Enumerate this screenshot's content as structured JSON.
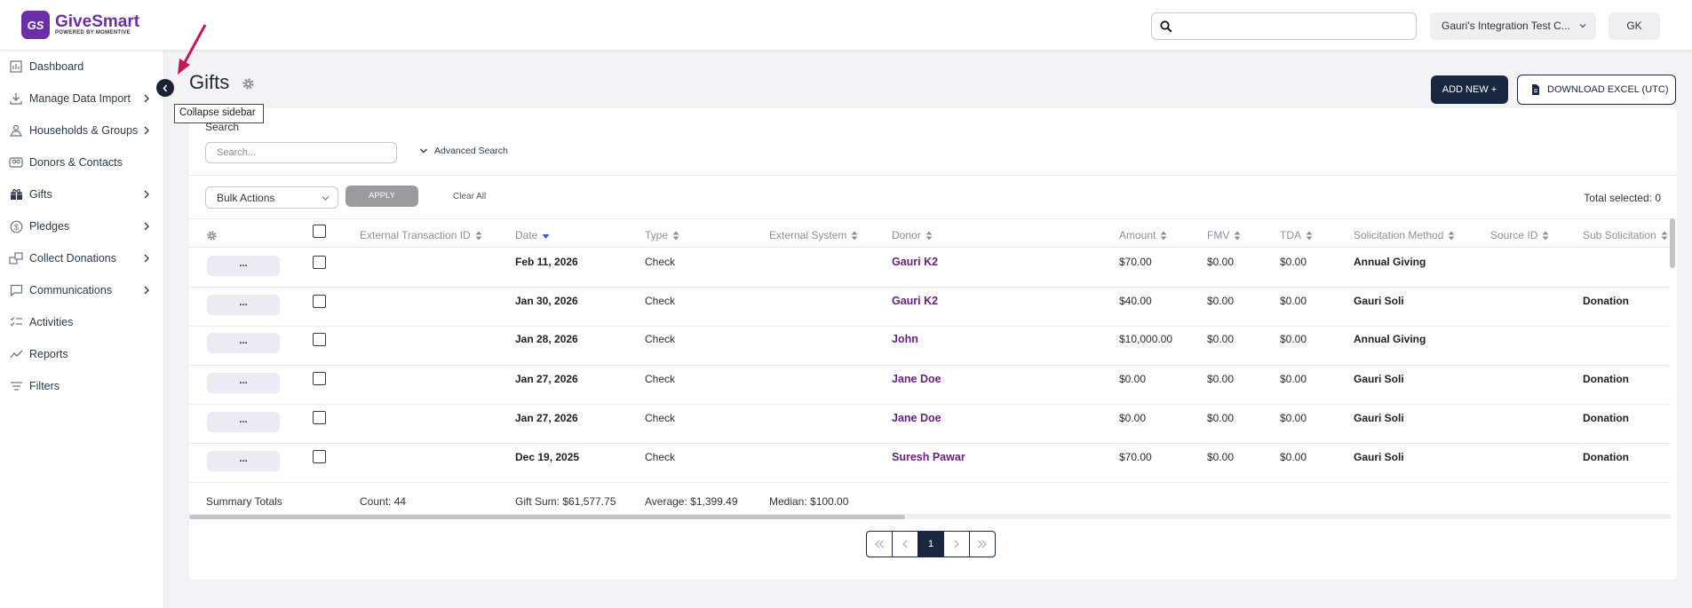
{
  "app": {
    "logo_initials": "GS",
    "logo_name": "GiveSmart",
    "logo_tagline": "POWERED BY MOMENTIVE",
    "brand_color": "#6b2fa5"
  },
  "header": {
    "search_placeholder": "",
    "org_name": "Gauri's Integration Test C...",
    "user_initials": "GK"
  },
  "sidebar": {
    "items": [
      {
        "label": "Dashboard",
        "icon": "chart-icon",
        "has_submenu": false
      },
      {
        "label": "Manage Data Import",
        "icon": "download-icon",
        "has_submenu": true
      },
      {
        "label": "Households & Groups",
        "icon": "households-icon",
        "has_submenu": true
      },
      {
        "label": "Donors & Contacts",
        "icon": "contacts-icon",
        "has_submenu": false
      },
      {
        "label": "Gifts",
        "icon": "gift-icon",
        "has_submenu": true
      },
      {
        "label": "Pledges",
        "icon": "dollar-circle-icon",
        "has_submenu": true
      },
      {
        "label": "Collect Donations",
        "icon": "collect-icon",
        "has_submenu": true
      },
      {
        "label": "Communications",
        "icon": "chat-icon",
        "has_submenu": true
      },
      {
        "label": "Activities",
        "icon": "checklist-icon",
        "has_submenu": false
      },
      {
        "label": "Reports",
        "icon": "trend-icon",
        "has_submenu": false
      },
      {
        "label": "Filters",
        "icon": "filter-icon",
        "has_submenu": false
      }
    ],
    "collapse_tooltip": "Collapse sidebar"
  },
  "page": {
    "title": "Gifts",
    "add_new_label": "ADD NEW +",
    "download_label": "DOWNLOAD EXCEL (UTC)"
  },
  "search": {
    "label": "Search",
    "placeholder": "Search...",
    "advanced_label": "Advanced Search"
  },
  "toolbar": {
    "bulk_actions": "Bulk Actions",
    "apply_label": "APPLY",
    "clear_all": "Clear All",
    "total_selected": "Total selected: 0"
  },
  "table": {
    "columns": [
      "External Transaction ID",
      "Date",
      "Type",
      "External System",
      "Donor",
      "Amount",
      "FMV",
      "TDA",
      "Solicitation Method",
      "Source ID",
      "Sub Solicitation"
    ],
    "sorted_column": "Date",
    "rows": [
      {
        "action": "...",
        "ext_id": "",
        "date": "Feb 11, 2026",
        "type": "Check",
        "ext_system": "",
        "donor": "Gauri K2",
        "amount": "$70.00",
        "fmv": "$0.00",
        "tda": "$0.00",
        "solicitation": "Annual Giving",
        "source_id": "",
        "sub_solicitation": ""
      },
      {
        "action": "...",
        "ext_id": "",
        "date": "Jan 30, 2026",
        "type": "Check",
        "ext_system": "",
        "donor": "Gauri K2",
        "amount": "$40.00",
        "fmv": "$0.00",
        "tda": "$0.00",
        "solicitation": "Gauri Soli",
        "source_id": "",
        "sub_solicitation": "Donation"
      },
      {
        "action": "...",
        "ext_id": "",
        "date": "Jan 28, 2026",
        "type": "Check",
        "ext_system": "",
        "donor": "John",
        "amount": "$10,000.00",
        "fmv": "$0.00",
        "tda": "$0.00",
        "solicitation": "Annual Giving",
        "source_id": "",
        "sub_solicitation": ""
      },
      {
        "action": "...",
        "ext_id": "",
        "date": "Jan 27, 2026",
        "type": "Check",
        "ext_system": "",
        "donor": "Jane Doe",
        "amount": "$0.00",
        "fmv": "$0.00",
        "tda": "$0.00",
        "solicitation": "Gauri Soli",
        "source_id": "",
        "sub_solicitation": "Donation"
      },
      {
        "action": "...",
        "ext_id": "",
        "date": "Jan 27, 2026",
        "type": "Check",
        "ext_system": "",
        "donor": "Jane Doe",
        "amount": "$0.00",
        "fmv": "$0.00",
        "tda": "$0.00",
        "solicitation": "Gauri Soli",
        "source_id": "",
        "sub_solicitation": "Donation"
      },
      {
        "action": "...",
        "ext_id": "",
        "date": "Dec 19, 2025",
        "type": "Check",
        "ext_system": "",
        "donor": "Suresh Pawar",
        "amount": "$70.00",
        "fmv": "$0.00",
        "tda": "$0.00",
        "solicitation": "Gauri Soli",
        "source_id": "",
        "sub_solicitation": "Donation"
      }
    ]
  },
  "summary": {
    "label": "Summary Totals",
    "count": "Count: 44",
    "gift_sum": "Gift Sum: $61,577.75",
    "average": "Average: $1,399.49",
    "median": "Median: $100.00"
  },
  "pagination": {
    "current_page": "1"
  },
  "colors": {
    "navy": "#1a2740",
    "donor_link": "#6b1f86",
    "annotation_arrow": "#c2185b"
  }
}
